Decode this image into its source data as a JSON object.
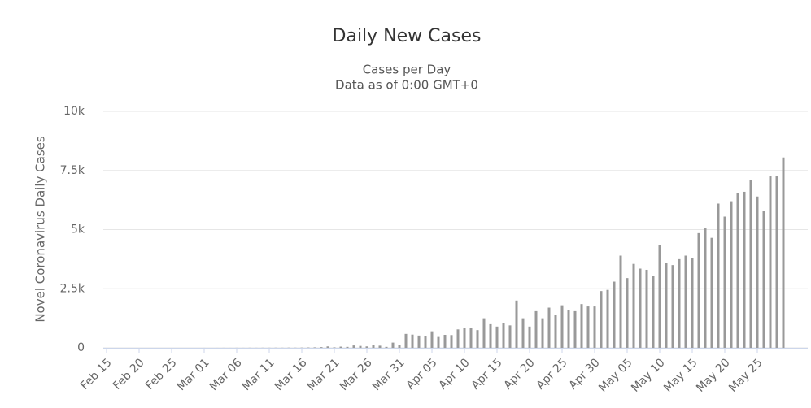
{
  "chart_data": {
    "type": "bar",
    "title": "Daily New Cases",
    "subtitle": [
      "Cases per Day",
      "Data as of 0:00 GMT+0"
    ],
    "y_label": "Novel Coronavirus Daily Cases",
    "color": "#999999",
    "grid": true,
    "ylim": [
      0,
      10000
    ],
    "yticks": [
      0,
      {
        "value": 2500,
        "label": "2.5k"
      },
      {
        "value": 5000,
        "label": "5k"
      },
      {
        "value": 7500,
        "label": "7.5k"
      },
      {
        "value": 10000,
        "label": "10k"
      }
    ],
    "categories": [
      "Feb 15",
      null,
      null,
      null,
      null,
      "Feb 20",
      null,
      null,
      null,
      null,
      "Feb 25",
      null,
      null,
      null,
      null,
      "Mar 01",
      null,
      null,
      null,
      null,
      "Mar 06",
      null,
      null,
      null,
      null,
      "Mar 11",
      null,
      null,
      null,
      null,
      "Mar 16",
      null,
      null,
      null,
      null,
      "Mar 21",
      null,
      null,
      null,
      null,
      "Mar 26",
      null,
      null,
      null,
      null,
      "Mar 31",
      null,
      null,
      null,
      null,
      "Apr 05",
      null,
      null,
      null,
      null,
      "Apr 10",
      null,
      null,
      null,
      null,
      "Apr 15",
      null,
      null,
      null,
      null,
      "Apr 20",
      null,
      null,
      null,
      null,
      "Apr 25",
      null,
      null,
      null,
      null,
      "Apr 30",
      null,
      null,
      null,
      null,
      "May 05",
      null,
      null,
      null,
      null,
      "May 10",
      null,
      null,
      null,
      null,
      "May 15",
      null,
      null,
      null,
      null,
      "May 20",
      null,
      null,
      null,
      null,
      "May 25",
      null,
      null,
      null,
      null
    ],
    "values": [
      0,
      0,
      0,
      0,
      0,
      0,
      0,
      0,
      0,
      0,
      0,
      0,
      0,
      0,
      0,
      1,
      0,
      1,
      2,
      1,
      3,
      2,
      4,
      3,
      5,
      4,
      6,
      5,
      8,
      6,
      10,
      15,
      20,
      30,
      60,
      20,
      50,
      40,
      100,
      80,
      60,
      120,
      90,
      40,
      220,
      130,
      590,
      560,
      520,
      500,
      700,
      460,
      550,
      540,
      780,
      850,
      830,
      750,
      1250,
      1000,
      900,
      1050,
      950,
      2000,
      1250,
      900,
      1550,
      1250,
      1700,
      1400,
      1800,
      1600,
      1550,
      1850,
      1750,
      1750,
      2400,
      2450,
      2800,
      3900,
      2950,
      3550,
      3350,
      3300,
      3050,
      4350,
      3600,
      3500,
      3750,
      3900,
      3800,
      4850,
      5050,
      4650,
      6100,
      5550,
      6200,
      6550,
      6600,
      7100,
      6400,
      5800,
      7250,
      7250,
      8050
    ]
  }
}
